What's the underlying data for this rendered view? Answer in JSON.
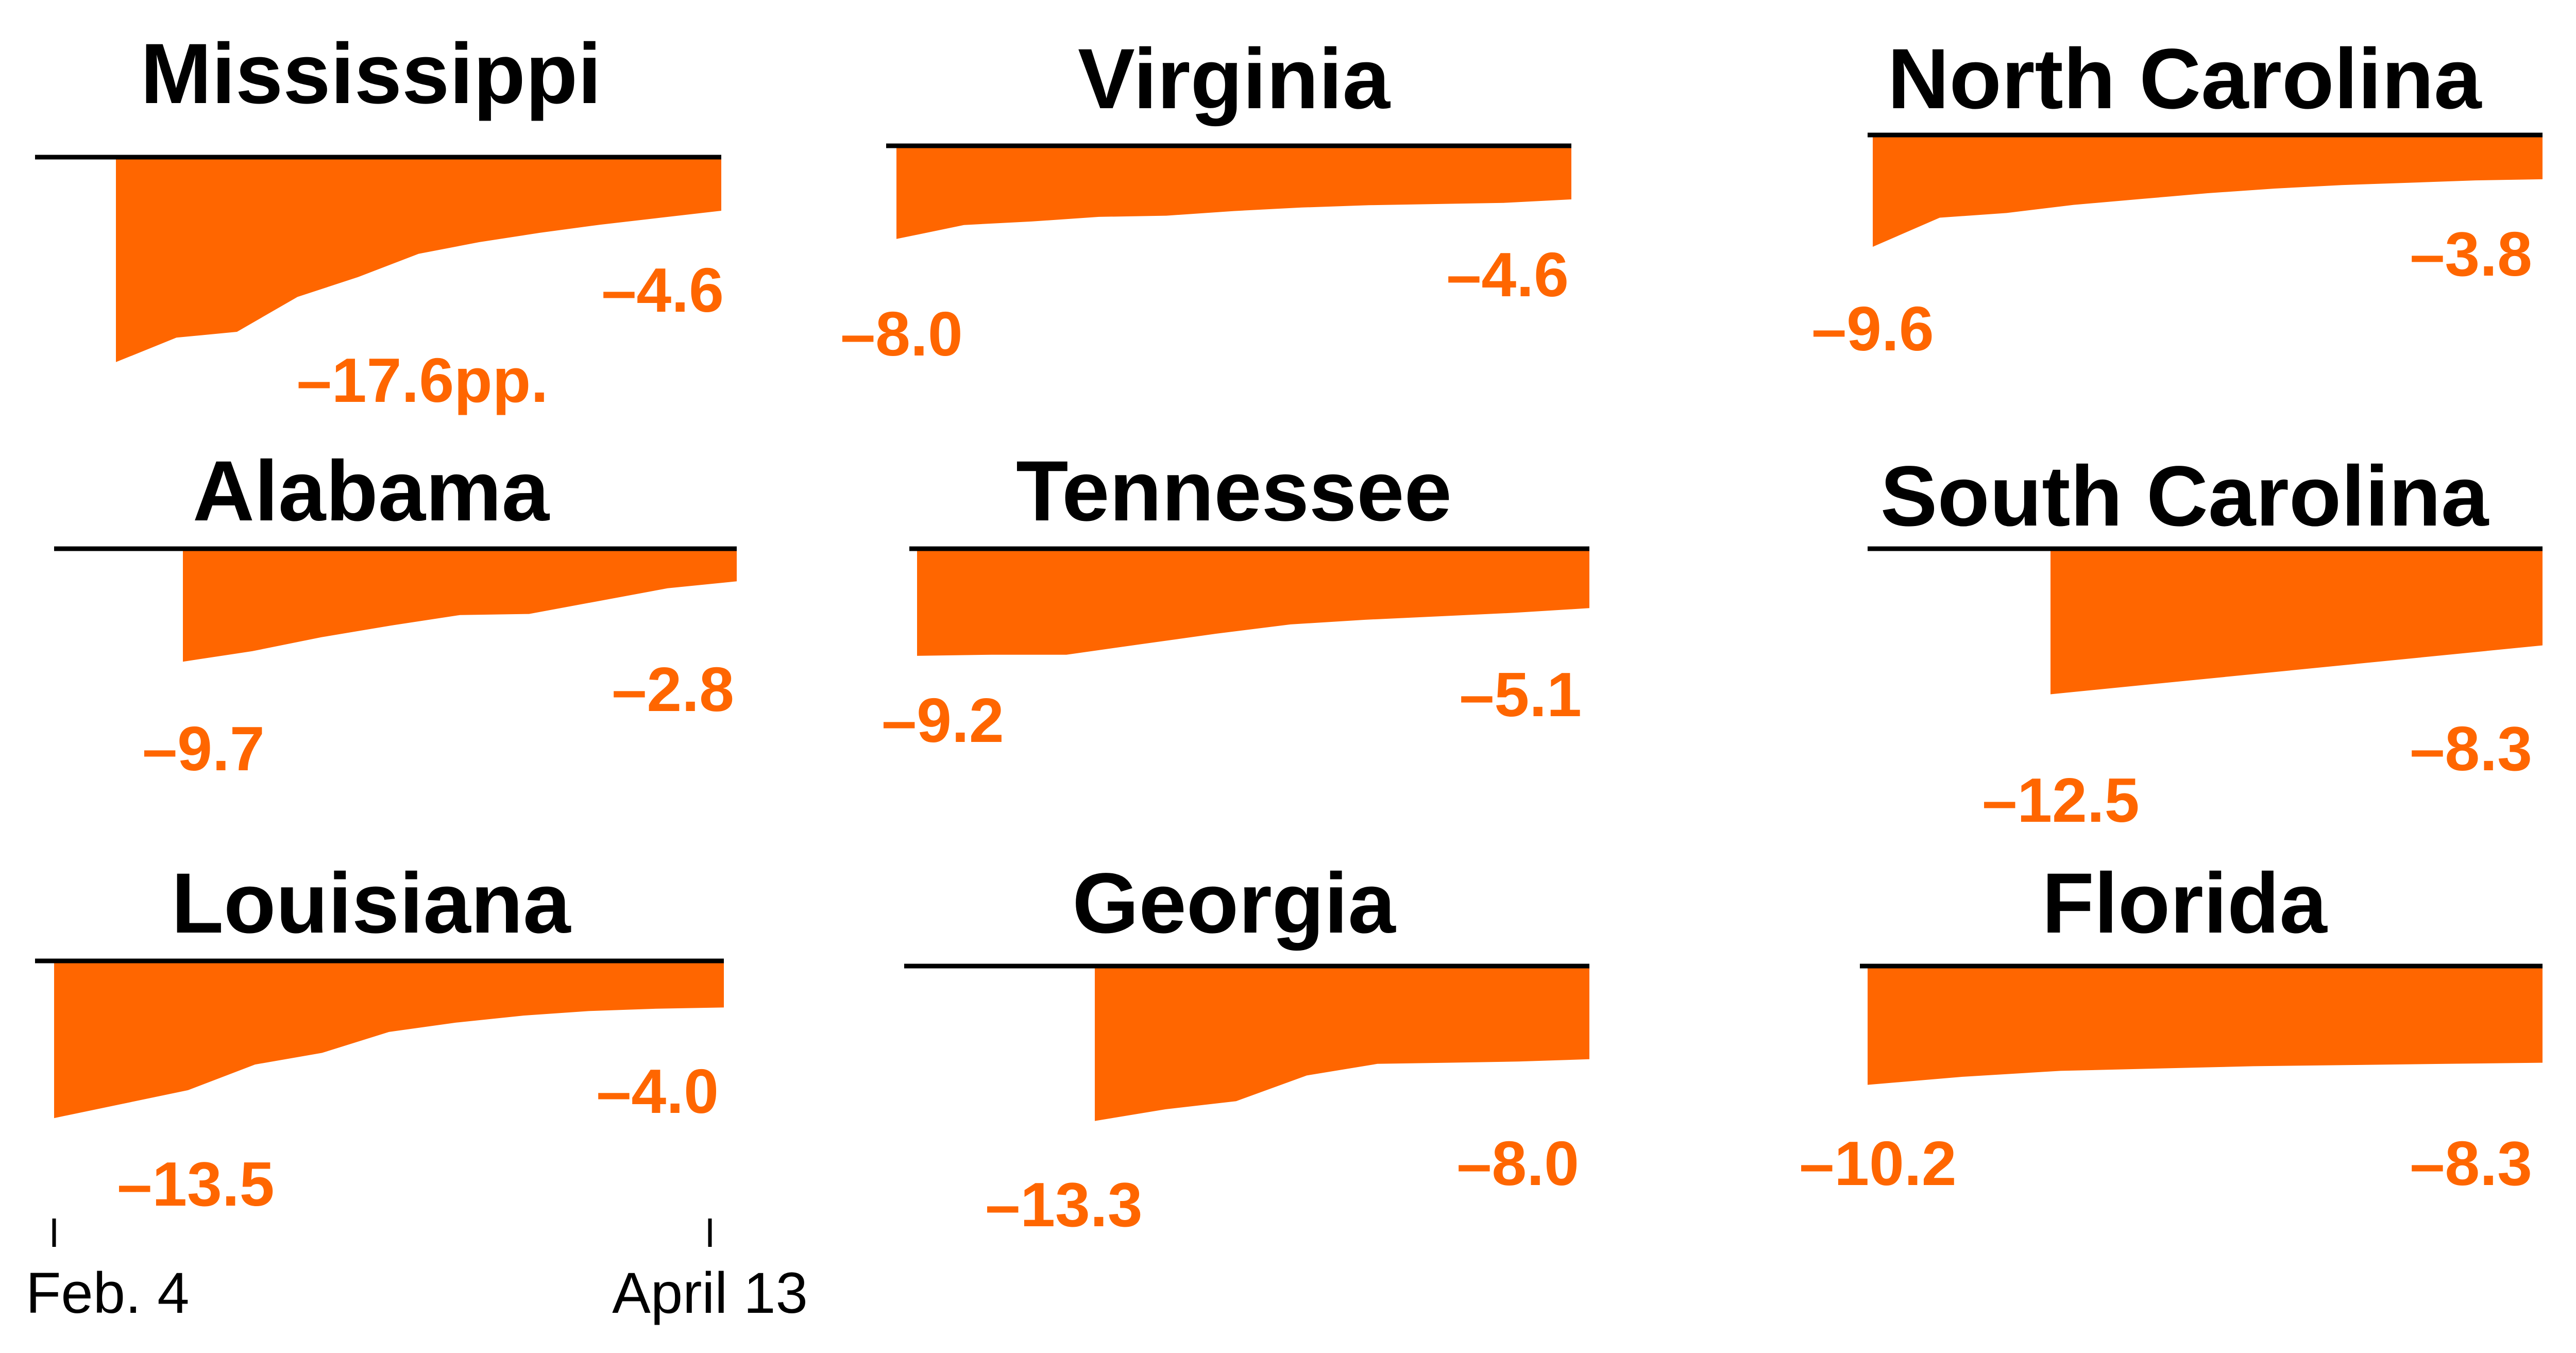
{
  "colors": {
    "area": "#ff6600",
    "label": "#ff6600",
    "title": "#000000",
    "baseline": "#000000"
  },
  "chart_data": {
    "type": "area",
    "x_range_labels": [
      "Feb. 4",
      "April 13"
    ],
    "charts": [
      {
        "title": "Mississippi",
        "values": [
          -17.6,
          -15.5,
          -15.0,
          -12.0,
          -10.3,
          -8.3,
          -7.3,
          -6.5,
          -5.8,
          -5.2,
          -4.6
        ],
        "start_label": "–17.6pp.",
        "end_label": "–4.6"
      },
      {
        "title": "Virginia",
        "values": [
          -8.0,
          -6.8,
          -6.5,
          -6.1,
          -6.0,
          -5.6,
          -5.3,
          -5.1,
          -5.0,
          -4.9,
          -4.6
        ],
        "start_label": "–8.0",
        "end_label": "–4.6"
      },
      {
        "title": "North Carolina",
        "values": [
          -9.6,
          -7.1,
          -6.7,
          -6.0,
          -5.5,
          -5.0,
          -4.6,
          -4.3,
          -4.1,
          -3.9,
          -3.8
        ],
        "start_label": "–9.6",
        "end_label": "–3.8"
      },
      {
        "title": "Alabama",
        "values": [
          -9.7,
          -8.8,
          -7.6,
          -6.6,
          -5.7,
          -5.6,
          -4.5,
          -3.4,
          -2.8
        ],
        "start_label": "–9.7",
        "end_label": "–2.8"
      },
      {
        "title": "Tennessee",
        "values": [
          -9.2,
          -9.1,
          -9.1,
          -8.2,
          -7.3,
          -6.5,
          -6.1,
          -5.8,
          -5.5,
          -5.1
        ],
        "start_label": "–9.2",
        "end_label": "–5.1"
      },
      {
        "title": "South Carolina",
        "values": [
          -12.5,
          -8.3
        ],
        "start_label": "–12.5",
        "end_label": "–8.3"
      },
      {
        "title": "Louisiana",
        "values": [
          -13.5,
          -12.3,
          -11.1,
          -8.9,
          -7.9,
          -6.1,
          -5.3,
          -4.7,
          -4.3,
          -4.1,
          -4.0
        ],
        "start_label": "–13.5",
        "end_label": "–4.0"
      },
      {
        "title": "Georgia",
        "values": [
          -13.3,
          -12.3,
          -11.6,
          -9.4,
          -8.4,
          -8.3,
          -8.2,
          -8.0
        ],
        "start_label": "–13.3",
        "end_label": "–8.0"
      },
      {
        "title": "Florida",
        "values": [
          -10.2,
          -9.5,
          -9.0,
          -8.8,
          -8.6,
          -8.5,
          -8.4,
          -8.3
        ],
        "start_label": "–10.2",
        "end_label": "–8.3"
      }
    ]
  }
}
